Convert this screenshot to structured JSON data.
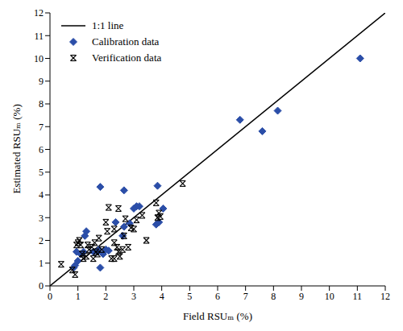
{
  "chart_data": {
    "type": "scatter",
    "xlabel": "Field RSUₘ (%)",
    "ylabel": "Estimated RSUₘ (%)",
    "xlim": [
      0,
      12
    ],
    "ylim": [
      0,
      12
    ],
    "xticks": [
      0,
      1,
      2,
      3,
      4,
      5,
      6,
      7,
      8,
      9,
      10,
      11,
      12
    ],
    "yticks": [
      0,
      1,
      2,
      3,
      4,
      5,
      6,
      7,
      8,
      9,
      10,
      11,
      12
    ],
    "grid": false,
    "legend": "upper left",
    "series": [
      {
        "name": "1:1 line",
        "type": "line",
        "color": "#000000",
        "line_style": "solid",
        "x": [
          0,
          12
        ],
        "values": [
          0,
          12
        ]
      },
      {
        "name": "Calibration data",
        "type": "scatter",
        "marker": "diamond",
        "color": "#2b4ea8",
        "x": [
          11.1,
          8.15,
          7.6,
          6.8,
          3.85,
          3.8,
          4.05,
          3.9,
          3.2,
          3.1,
          3.0,
          2.65,
          2.6,
          2.65,
          2.35,
          1.8,
          1.8,
          1.7,
          1.75,
          1.55,
          1.3,
          1.25,
          1.2,
          1.1,
          0.9,
          0.95,
          0.85,
          1.0,
          2.1,
          2.0,
          1.9,
          2.85
        ],
        "values": [
          10.0,
          7.7,
          6.8,
          7.3,
          4.4,
          2.7,
          3.4,
          2.8,
          3.5,
          3.5,
          3.4,
          4.2,
          2.2,
          2.6,
          2.8,
          4.35,
          0.8,
          1.5,
          1.6,
          1.5,
          2.4,
          2.2,
          1.5,
          1.4,
          0.9,
          1.5,
          0.8,
          1.1,
          1.55,
          1.6,
          1.4,
          2.75
        ]
      },
      {
        "name": "Verification data",
        "type": "scatter",
        "marker": "asterisk",
        "color": "#000000",
        "x": [
          0.4,
          0.9,
          0.8,
          0.95,
          1.0,
          1.05,
          1.15,
          1.2,
          1.3,
          1.35,
          1.4,
          1.5,
          1.55,
          1.6,
          1.65,
          1.7,
          1.75,
          1.85,
          2.0,
          2.05,
          2.1,
          2.2,
          2.3,
          2.3,
          2.4,
          2.45,
          2.5,
          2.45,
          2.6,
          2.65,
          2.7,
          2.8,
          2.9,
          3.0,
          3.1,
          3.3,
          3.45,
          3.8,
          3.85,
          3.9,
          3.95,
          4.75,
          2.3,
          1.1
        ],
        "values": [
          0.95,
          0.5,
          0.7,
          1.8,
          1.9,
          2.0,
          1.4,
          1.2,
          1.3,
          1.8,
          1.6,
          1.7,
          1.2,
          1.9,
          1.5,
          1.4,
          2.1,
          1.6,
          2.8,
          2.4,
          3.45,
          1.2,
          1.2,
          1.9,
          1.7,
          1.5,
          1.3,
          3.4,
          1.6,
          2.2,
          2.95,
          1.7,
          2.55,
          2.5,
          2.9,
          3.1,
          2.0,
          3.65,
          3.0,
          3.2,
          3.05,
          4.5,
          2.5,
          1.8
        ]
      }
    ]
  }
}
